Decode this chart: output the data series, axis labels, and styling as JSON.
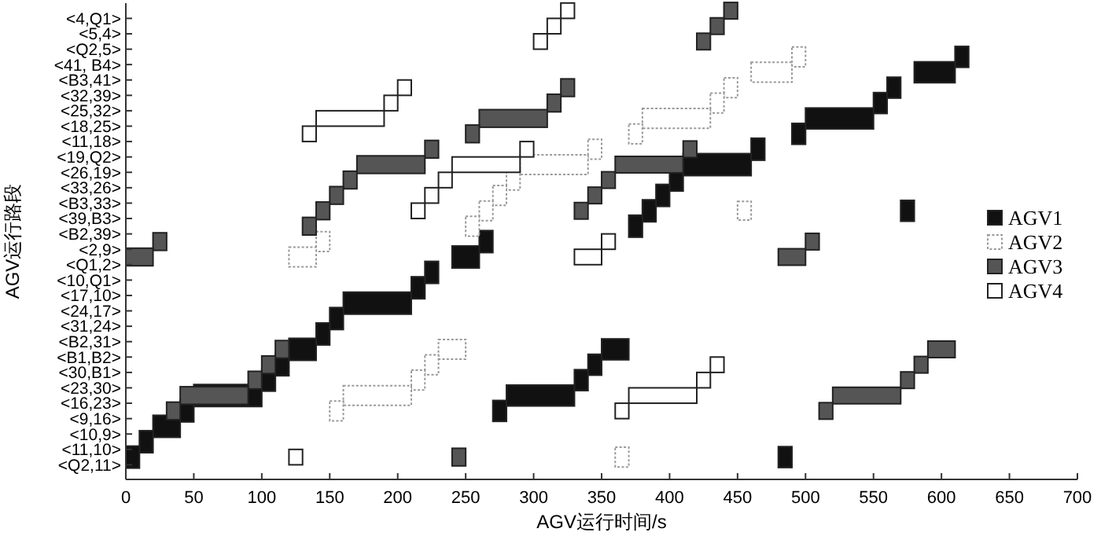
{
  "chart_data": {
    "type": "bar",
    "orientation": "horizontal",
    "xlabel": "AGV运行时间/s",
    "ylabel": "AGV运行路段",
    "categories": [
      "<4,Q1>",
      "<5,4>",
      "<Q2,5>",
      "<41, B4>",
      "<B3,41>",
      "<32,39>",
      "<25,32>",
      "<18,25>",
      "<11,18>",
      "<19,Q2>",
      "<26,19>",
      "<33,26>",
      "<B3,33>",
      "<39,B3>",
      "<B2,39>",
      "<2,9>",
      "<Q1,2>",
      "<10,Q1>",
      "<17,10>",
      "<24,17>",
      "<31,24>",
      "<B2,31>",
      "<B1,B2>",
      "<30,B1>",
      "<23,30>",
      "<16,23>",
      "<9,16>",
      "<10,9>",
      "<11,10>",
      "<Q2,11>"
    ],
    "xlim": [
      0,
      700
    ],
    "xticks": [
      0,
      50,
      100,
      150,
      200,
      250,
      300,
      350,
      400,
      450,
      500,
      550,
      600,
      650,
      700
    ],
    "grid": false,
    "legend": "right",
    "series": [
      {
        "name": "AGV1",
        "color": "#111111",
        "line_style": "solid",
        "base": [
          null,
          null,
          null,
          null,
          null,
          null,
          null,
          null,
          null,
          460,
          410,
          400,
          390,
          380,
          370,
          260,
          240,
          220,
          210,
          160,
          150,
          140,
          120,
          110,
          100,
          50,
          40,
          20,
          10,
          0
        ],
        "values": [
          null,
          null,
          null,
          null,
          null,
          null,
          null,
          null,
          null,
          10,
          50,
          10,
          10,
          10,
          10,
          10,
          20,
          10,
          10,
          50,
          10,
          10,
          20,
          10,
          10,
          50,
          10,
          20,
          10,
          10
        ]
      },
      {
        "color": "#111111",
        "line_style": "solid",
        "base": [
          null,
          null,
          null,
          610,
          580,
          560,
          550,
          500,
          490,
          null,
          null,
          null,
          null,
          570,
          null,
          null,
          null,
          null,
          null,
          null,
          null,
          null,
          350,
          340,
          330,
          280,
          270,
          null,
          null,
          480
        ],
        "values": [
          null,
          null,
          null,
          10,
          30,
          10,
          10,
          50,
          10,
          null,
          null,
          null,
          null,
          10,
          null,
          null,
          null,
          null,
          null,
          null,
          null,
          null,
          20,
          10,
          10,
          50,
          10,
          null,
          null,
          10
        ]
      },
      {
        "name": "AGV2",
        "color": "#ffffff",
        "line_style": "dotted",
        "base": [
          null,
          null,
          null,
          490,
          460,
          440,
          430,
          380,
          370,
          340,
          290,
          280,
          270,
          260,
          250,
          140,
          120,
          null,
          null,
          null,
          null,
          null,
          230,
          220,
          210,
          160,
          150,
          null,
          null,
          360
        ],
        "values": [
          null,
          null,
          null,
          10,
          30,
          10,
          10,
          50,
          10,
          10,
          50,
          10,
          10,
          10,
          10,
          10,
          20,
          null,
          null,
          null,
          null,
          null,
          20,
          10,
          10,
          50,
          10,
          null,
          null,
          10
        ]
      },
      {
        "color": "#ffffff",
        "line_style": "dotted",
        "base": [
          null,
          null,
          null,
          null,
          null,
          null,
          null,
          null,
          null,
          null,
          null,
          null,
          null,
          450,
          null,
          null,
          null,
          null,
          null,
          null,
          null,
          null,
          null,
          null,
          null,
          null,
          null,
          null,
          null,
          null
        ],
        "values": [
          null,
          null,
          null,
          null,
          null,
          null,
          null,
          null,
          null,
          null,
          null,
          null,
          null,
          10,
          null,
          null,
          null,
          null,
          null,
          null,
          null,
          null,
          null,
          null,
          null,
          null,
          null,
          null,
          null,
          null
        ]
      },
      {
        "name": "AGV3",
        "color": "#555555",
        "line_style": "solid",
        "base": [
          null,
          null,
          null,
          null,
          null,
          320,
          310,
          260,
          250,
          220,
          170,
          160,
          150,
          140,
          130,
          20,
          0,
          null,
          null,
          null,
          null,
          null,
          110,
          100,
          90,
          40,
          30,
          null,
          null,
          240
        ],
        "values": [
          null,
          null,
          null,
          null,
          null,
          10,
          10,
          50,
          10,
          10,
          50,
          10,
          10,
          10,
          10,
          10,
          20,
          null,
          null,
          null,
          null,
          null,
          10,
          10,
          10,
          50,
          10,
          null,
          null,
          10
        ]
      },
      {
        "color": "#555555",
        "line_style": "solid",
        "base": [
          440,
          430,
          420,
          null,
          null,
          null,
          null,
          null,
          null,
          410,
          360,
          350,
          340,
          330,
          null,
          500,
          480,
          null,
          null,
          null,
          null,
          null,
          590,
          580,
          570,
          520,
          510,
          null,
          null,
          null
        ],
        "values": [
          10,
          10,
          10,
          null,
          null,
          null,
          null,
          null,
          null,
          10,
          50,
          10,
          10,
          10,
          null,
          10,
          20,
          null,
          null,
          null,
          null,
          null,
          20,
          10,
          10,
          50,
          10,
          null,
          null,
          null
        ]
      },
      {
        "name": "AGV4",
        "color": "#ffffff",
        "line_style": "solid",
        "base": [
          320,
          310,
          300,
          null,
          null,
          200,
          190,
          140,
          130,
          290,
          240,
          230,
          220,
          210,
          null,
          350,
          330,
          null,
          null,
          null,
          null,
          null,
          null,
          430,
          420,
          370,
          360,
          null,
          null,
          120
        ],
        "values": [
          10,
          10,
          10,
          null,
          null,
          10,
          10,
          50,
          10,
          10,
          50,
          10,
          10,
          10,
          null,
          10,
          20,
          null,
          null,
          null,
          null,
          null,
          null,
          10,
          10,
          50,
          10,
          null,
          null,
          10
        ]
      }
    ]
  }
}
